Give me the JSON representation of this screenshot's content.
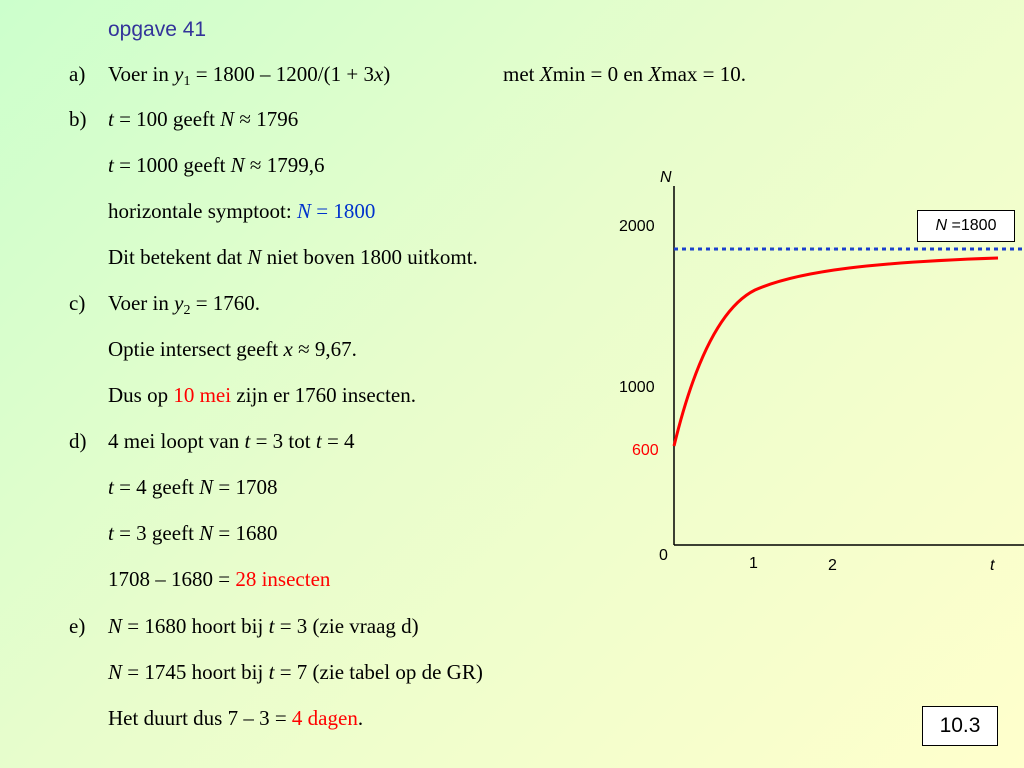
{
  "title": "opgave 41",
  "parts": {
    "a": {
      "label": "a)",
      "voer": "Voer in ",
      "y": "y",
      "sub": "1",
      "eq": " = 1800 – 1200/(1 + 3",
      "x": "x",
      "close": ")",
      "met": "met ",
      "X1": "X",
      "min": "min = 0 en  ",
      "X2": "X",
      "max": "max = 10."
    },
    "b": {
      "label": "b)",
      "l1": {
        "t": "t",
        "a": " = 100 geeft ",
        "N": "N",
        "b": " ≈ 1796"
      },
      "l2": {
        "t": "t",
        "a": " = 1000 geeft ",
        "N": "N",
        "b": " ≈ 1799,6"
      },
      "l3": {
        "a": "horizontale symptoot: ",
        "N": "N",
        "b": " = 1800"
      },
      "l4": {
        "a": "Dit betekent dat ",
        "N": "N",
        "b": " niet boven 1800 uitkomt."
      }
    },
    "c": {
      "label": "c)",
      "l1": {
        "a": "Voer in ",
        "y": "y",
        "sub": "2",
        "b": " = 1760."
      },
      "l2": {
        "a": "Optie intersect geeft ",
        "x": "x",
        "b": " ≈ 9,67."
      },
      "l3": {
        "a": "Dus op ",
        "red": "10 mei",
        "b": " zijn er 1760  insecten."
      }
    },
    "d": {
      "label": "d)",
      "l1": {
        "a": "4 mei loopt van ",
        "t1": "t",
        "b": " = 3 tot ",
        "t2": "t",
        "c": " = 4"
      },
      "l2": {
        "t": "t",
        "a": " = 4 geeft ",
        "N": "N",
        "b": " = 1708"
      },
      "l3": {
        "t": "t",
        "a": " = 3 geeft ",
        "N": "N",
        "b": " = 1680"
      },
      "l4": {
        "a": "1708 – 1680 = ",
        "red": "28 insecten"
      }
    },
    "e": {
      "label": "e)",
      "l1": {
        "N": "N",
        "a": " = 1680 hoort bij ",
        "t": "t",
        "b": " = 3 (zie vraag d)"
      },
      "l2": {
        "N": "N",
        "a": " = 1745 hoort bij ",
        "t": "t",
        "b": " = 7 (zie tabel op de GR)"
      },
      "l3": {
        "a": "Het duurt dus 7 – 3 = ",
        "red": "4 dagen",
        "b": "."
      }
    }
  },
  "graph": {
    "y_axis_label": "N",
    "x_axis_label": "t",
    "y_ticks": [
      "2000",
      "1000",
      "0"
    ],
    "red_tick": "600",
    "x_ticks": [
      "1",
      "2"
    ],
    "asymptote_box": {
      "N": "N",
      "text": " =1800"
    },
    "colors": {
      "curve": "#ff0000",
      "asymptote": "#1a3fcc"
    }
  },
  "slide_number": "10.3"
}
